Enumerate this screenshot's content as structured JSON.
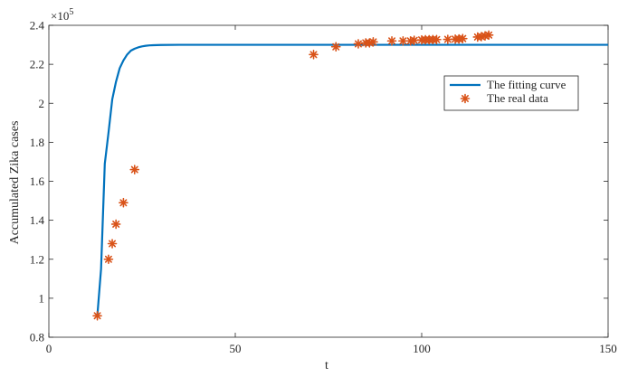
{
  "chart_data": {
    "type": "line",
    "title": "",
    "xlabel": "t",
    "ylabel": "Accumulated Zika cases",
    "xlim": [
      0,
      150
    ],
    "ylim": [
      80000,
      240000
    ],
    "x_ticks": [
      0,
      50,
      100,
      150
    ],
    "x_tick_labels": [
      "0",
      "50",
      "100",
      "150"
    ],
    "y_ticks": [
      80000,
      100000,
      120000,
      140000,
      160000,
      180000,
      200000,
      220000,
      240000
    ],
    "y_tick_labels": [
      "0.8",
      "1",
      "1.2",
      "1.4",
      "1.6",
      "1.8",
      "2",
      "2.2",
      "2.4"
    ],
    "y_exponent_label": "×10",
    "y_exponent_power": "5",
    "grid": false,
    "legend_position": "upper-right",
    "series": [
      {
        "name": "The fitting curve",
        "kind": "line",
        "color": "#0072BD",
        "x": [
          13,
          14,
          15,
          16,
          17,
          18,
          19,
          20,
          21,
          22,
          23,
          24,
          25,
          26,
          27,
          28,
          30,
          35,
          40,
          60,
          80,
          100,
          120,
          150
        ],
        "y": [
          91000,
          115000,
          169000,
          185000,
          202000,
          211000,
          218000,
          222000,
          225000,
          227000,
          228000,
          228700,
          229200,
          229500,
          229700,
          229800,
          229900,
          230000,
          230000,
          230000,
          230000,
          230000,
          230000,
          230000
        ]
      },
      {
        "name": "The real data",
        "kind": "scatter",
        "marker": "*",
        "color": "#D95319",
        "x": [
          13,
          16,
          17,
          18,
          20,
          23,
          71,
          77,
          83,
          85,
          86,
          87,
          92,
          95,
          97,
          98,
          100,
          101,
          102,
          103,
          104,
          107,
          109,
          110,
          111,
          115,
          116,
          117,
          118
        ],
        "y": [
          91000,
          120000,
          128000,
          138000,
          149000,
          166000,
          225000,
          229000,
          230500,
          231000,
          231000,
          231500,
          232000,
          232000,
          232000,
          232300,
          232500,
          232600,
          232600,
          232700,
          232700,
          232800,
          232900,
          233000,
          233200,
          234000,
          234200,
          234600,
          235000
        ]
      }
    ]
  }
}
